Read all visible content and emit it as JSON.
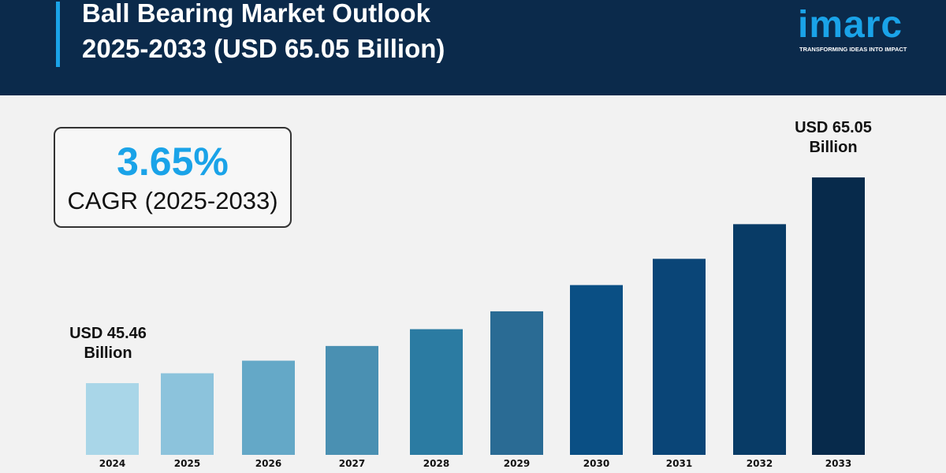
{
  "header": {
    "title_line1": "Ball Bearing Market Outlook",
    "title_line2": "2025-2033 (USD 65.05 Billion)",
    "logo_word": "imarc",
    "logo_tagline": "TRANSFORMING IDEAS INTO IMPACT"
  },
  "cagr": {
    "value": "3.65%",
    "label": "CAGR (2025-2033)"
  },
  "colors": {
    "header_bg": "#0b2a4b",
    "accent": "#1aa3e8",
    "background": "#f2f2f2"
  },
  "chart_data": {
    "type": "bar",
    "title": "Ball Bearing Market Outlook 2025-2033 (USD 65.05 Billion)",
    "categories": [
      "2024",
      "2025",
      "2026",
      "2027",
      "2028",
      "2029",
      "2030",
      "2031",
      "2032",
      "2033"
    ],
    "values": [
      45.46,
      46.4,
      47.6,
      49.0,
      50.6,
      52.3,
      54.8,
      57.3,
      60.6,
      65.05
    ],
    "unit": "USD Billion",
    "bar_colors": [
      "#a9d6e8",
      "#8cc3dc",
      "#64a8c7",
      "#4a90b2",
      "#2b7ba2",
      "#2a6b94",
      "#0a4f84",
      "#0a4577",
      "#083b66",
      "#072a4b"
    ],
    "annotations": [
      {
        "category": "2024",
        "line1": "USD 45.46",
        "line2": "Billion"
      },
      {
        "category": "2033",
        "line1": "USD 65.05",
        "line2": "Billion"
      }
    ],
    "grid": false,
    "legend": "none"
  }
}
